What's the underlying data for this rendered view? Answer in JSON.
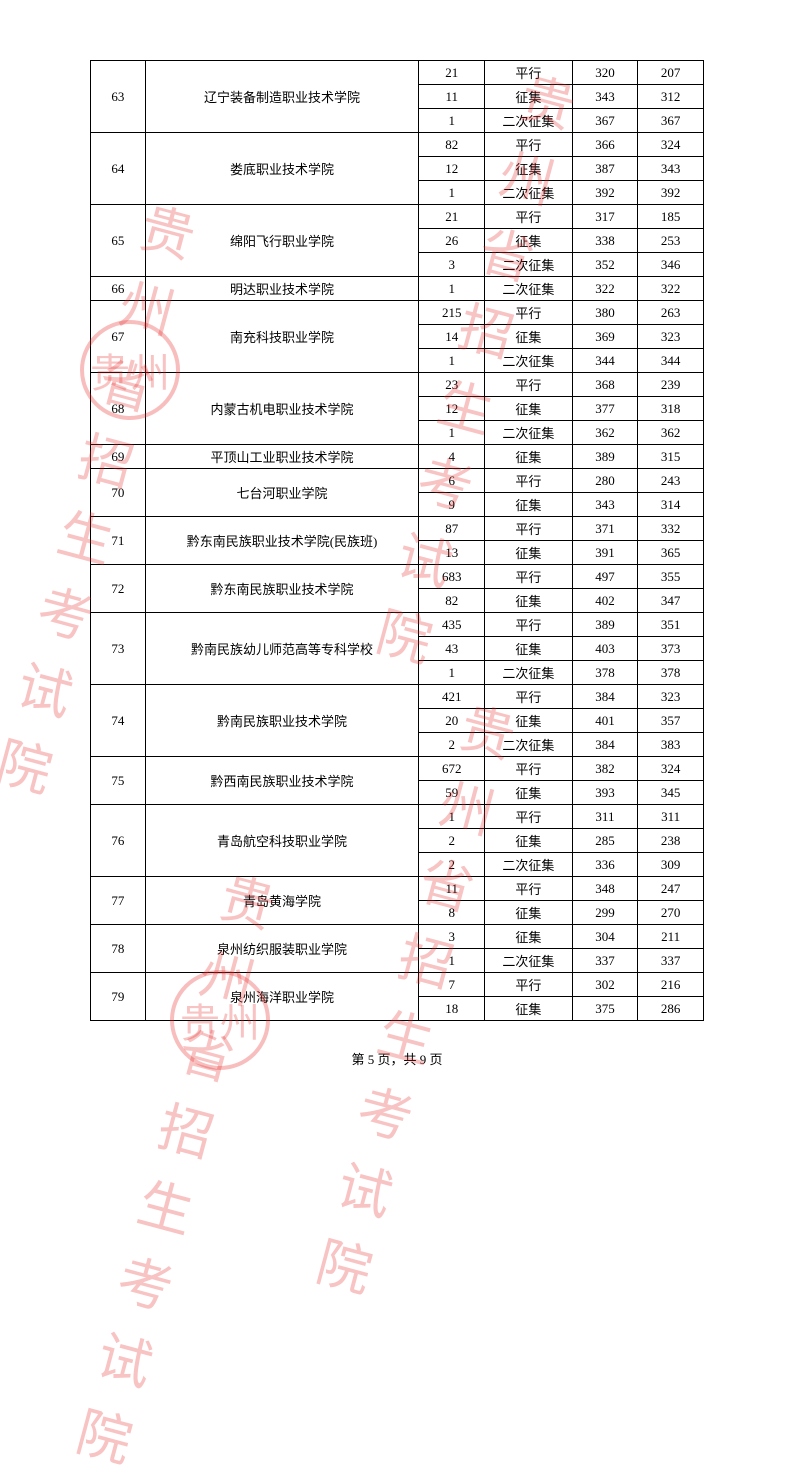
{
  "table": {
    "columns": [
      {
        "key": "idx",
        "class": "col-idx"
      },
      {
        "key": "name",
        "class": "col-name"
      },
      {
        "key": "n1",
        "class": "col-n1"
      },
      {
        "key": "type",
        "class": "col-type"
      },
      {
        "key": "n2",
        "class": "col-n2"
      },
      {
        "key": "n3",
        "class": "col-n3"
      }
    ],
    "groups": [
      {
        "idx": "63",
        "name": "辽宁装备制造职业技术学院",
        "rows": [
          {
            "n1": "21",
            "type": "平行",
            "n2": "320",
            "n3": "207"
          },
          {
            "n1": "11",
            "type": "征集",
            "n2": "343",
            "n3": "312"
          },
          {
            "n1": "1",
            "type": "二次征集",
            "n2": "367",
            "n3": "367"
          }
        ]
      },
      {
        "idx": "64",
        "name": "娄底职业技术学院",
        "rows": [
          {
            "n1": "82",
            "type": "平行",
            "n2": "366",
            "n3": "324"
          },
          {
            "n1": "12",
            "type": "征集",
            "n2": "387",
            "n3": "343"
          },
          {
            "n1": "1",
            "type": "二次征集",
            "n2": "392",
            "n3": "392"
          }
        ]
      },
      {
        "idx": "65",
        "name": "绵阳飞行职业学院",
        "rows": [
          {
            "n1": "21",
            "type": "平行",
            "n2": "317",
            "n3": "185"
          },
          {
            "n1": "26",
            "type": "征集",
            "n2": "338",
            "n3": "253"
          },
          {
            "n1": "3",
            "type": "二次征集",
            "n2": "352",
            "n3": "346"
          }
        ]
      },
      {
        "idx": "66",
        "name": "明达职业技术学院",
        "rows": [
          {
            "n1": "1",
            "type": "二次征集",
            "n2": "322",
            "n3": "322"
          }
        ]
      },
      {
        "idx": "67",
        "name": "南充科技职业学院",
        "rows": [
          {
            "n1": "215",
            "type": "平行",
            "n2": "380",
            "n3": "263"
          },
          {
            "n1": "14",
            "type": "征集",
            "n2": "369",
            "n3": "323"
          },
          {
            "n1": "1",
            "type": "二次征集",
            "n2": "344",
            "n3": "344"
          }
        ]
      },
      {
        "idx": "68",
        "name": "内蒙古机电职业技术学院",
        "rows": [
          {
            "n1": "23",
            "type": "平行",
            "n2": "368",
            "n3": "239"
          },
          {
            "n1": "12",
            "type": "征集",
            "n2": "377",
            "n3": "318"
          },
          {
            "n1": "1",
            "type": "二次征集",
            "n2": "362",
            "n3": "362"
          }
        ]
      },
      {
        "idx": "69",
        "name": "平顶山工业职业技术学院",
        "rows": [
          {
            "n1": "4",
            "type": "征集",
            "n2": "389",
            "n3": "315"
          }
        ]
      },
      {
        "idx": "70",
        "name": "七台河职业学院",
        "rows": [
          {
            "n1": "6",
            "type": "平行",
            "n2": "280",
            "n3": "243"
          },
          {
            "n1": "9",
            "type": "征集",
            "n2": "343",
            "n3": "314"
          }
        ]
      },
      {
        "idx": "71",
        "name": "黔东南民族职业技术学院(民族班)",
        "rows": [
          {
            "n1": "87",
            "type": "平行",
            "n2": "371",
            "n3": "332"
          },
          {
            "n1": "13",
            "type": "征集",
            "n2": "391",
            "n3": "365"
          }
        ]
      },
      {
        "idx": "72",
        "name": "黔东南民族职业技术学院",
        "rows": [
          {
            "n1": "683",
            "type": "平行",
            "n2": "497",
            "n3": "355"
          },
          {
            "n1": "82",
            "type": "征集",
            "n2": "402",
            "n3": "347"
          }
        ]
      },
      {
        "idx": "73",
        "name": "黔南民族幼儿师范高等专科学校",
        "rows": [
          {
            "n1": "435",
            "type": "平行",
            "n2": "389",
            "n3": "351"
          },
          {
            "n1": "43",
            "type": "征集",
            "n2": "403",
            "n3": "373"
          },
          {
            "n1": "1",
            "type": "二次征集",
            "n2": "378",
            "n3": "378"
          }
        ]
      },
      {
        "idx": "74",
        "name": "黔南民族职业技术学院",
        "rows": [
          {
            "n1": "421",
            "type": "平行",
            "n2": "384",
            "n3": "323"
          },
          {
            "n1": "20",
            "type": "征集",
            "n2": "401",
            "n3": "357"
          },
          {
            "n1": "2",
            "type": "二次征集",
            "n2": "384",
            "n3": "383"
          }
        ]
      },
      {
        "idx": "75",
        "name": "黔西南民族职业技术学院",
        "rows": [
          {
            "n1": "672",
            "type": "平行",
            "n2": "382",
            "n3": "324"
          },
          {
            "n1": "59",
            "type": "征集",
            "n2": "393",
            "n3": "345"
          }
        ]
      },
      {
        "idx": "76",
        "name": "青岛航空科技职业学院",
        "rows": [
          {
            "n1": "1",
            "type": "平行",
            "n2": "311",
            "n3": "311"
          },
          {
            "n1": "2",
            "type": "征集",
            "n2": "285",
            "n3": "238"
          },
          {
            "n1": "2",
            "type": "二次征集",
            "n2": "336",
            "n3": "309"
          }
        ]
      },
      {
        "idx": "77",
        "name": "青岛黄海学院",
        "rows": [
          {
            "n1": "11",
            "type": "平行",
            "n2": "348",
            "n3": "247"
          },
          {
            "n1": "8",
            "type": "征集",
            "n2": "299",
            "n3": "270"
          }
        ]
      },
      {
        "idx": "78",
        "name": "泉州纺织服装职业学院",
        "rows": [
          {
            "n1": "3",
            "type": "征集",
            "n2": "304",
            "n3": "211"
          },
          {
            "n1": "1",
            "type": "二次征集",
            "n2": "337",
            "n3": "337"
          }
        ]
      },
      {
        "idx": "79",
        "name": "泉州海洋职业学院",
        "rows": [
          {
            "n1": "7",
            "type": "平行",
            "n2": "302",
            "n3": "216"
          },
          {
            "n1": "18",
            "type": "征集",
            "n2": "375",
            "n3": "286"
          }
        ]
      }
    ]
  },
  "watermark": {
    "text": "贵州省招生考试院",
    "seal_char": "贵州"
  },
  "footer": {
    "page_label_prefix": "第 ",
    "page_num": "5",
    "page_mid": " 页，共 ",
    "total": "9",
    "page_suffix": " 页"
  }
}
